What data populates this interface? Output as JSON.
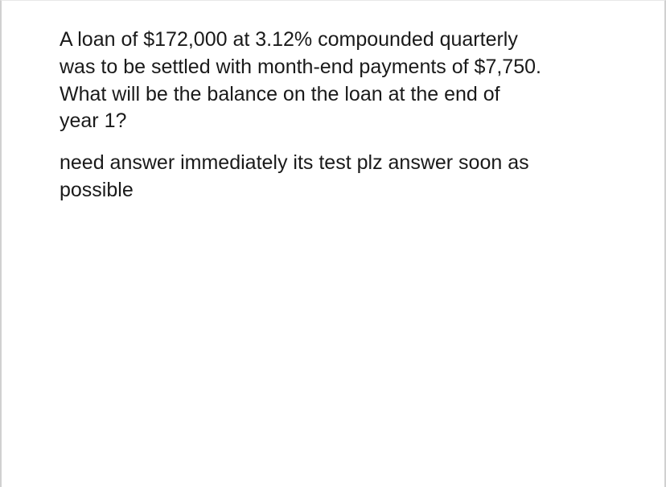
{
  "paragraphs": [
    "A loan of $172,000 at 3.12% compounded quarterly was to be settled with month-end payments of $7,750. What will be the balance on the loan at the end of year 1?",
    "need answer immediately its test plz answer soon as possible"
  ]
}
